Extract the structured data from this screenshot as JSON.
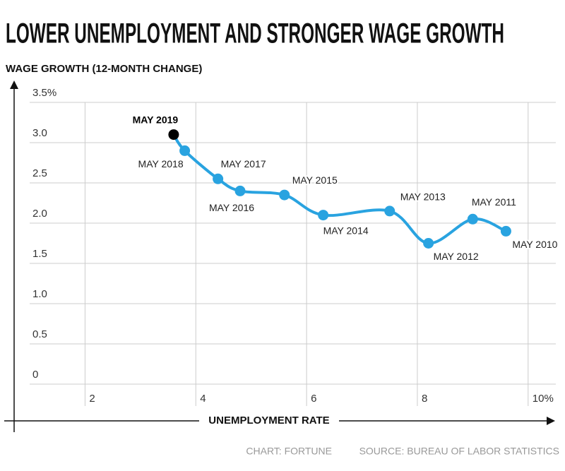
{
  "chart_data": {
    "type": "connected-scatter",
    "title": "LOWER UNEMPLOYMENT AND STRONGER WAGE GROWTH",
    "y_label": "WAGE GROWTH (12-MONTH CHANGE)",
    "x_label": "UNEMPLOYMENT RATE",
    "credit": "CHART: FORTUNE",
    "source": "SOURCE: BUREAU OF LABOR STATISTICS",
    "x": [
      3.6,
      3.8,
      4.4,
      4.8,
      5.6,
      6.3,
      7.5,
      8.2,
      9.0,
      9.6
    ],
    "values": [
      3.1,
      2.9,
      2.55,
      2.4,
      2.35,
      2.1,
      2.15,
      1.75,
      2.05,
      1.9
    ],
    "point_labels": [
      "MAY 2019",
      "MAY 2018",
      "MAY 2017",
      "MAY 2016",
      "MAY 2015",
      "MAY 2014",
      "MAY 2013",
      "MAY 2012",
      "MAY 2011",
      "MAY 2010"
    ],
    "color": "#29a3e0",
    "point_colors": [
      "#000000",
      "#29a3e0",
      "#29a3e0",
      "#29a3e0",
      "#29a3e0",
      "#29a3e0",
      "#29a3e0",
      "#29a3e0",
      "#29a3e0",
      "#29a3e0"
    ],
    "xlim": [
      1,
      10.5
    ],
    "ylim": [
      0,
      3.5
    ],
    "xticks": [
      2,
      4,
      6,
      8,
      {
        "value": 10,
        "label": "10%"
      }
    ],
    "yticks": [
      0,
      0.5,
      {
        "value": 1,
        "label": "1.0"
      },
      1.5,
      {
        "value": 2,
        "label": "2.0"
      },
      2.5,
      {
        "value": 3,
        "label": "3.0"
      },
      {
        "value": 3.5,
        "label": "3.5%"
      }
    ],
    "grid": true
  }
}
